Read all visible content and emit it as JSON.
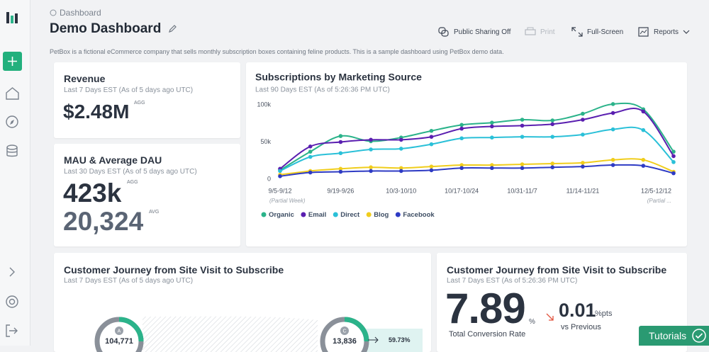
{
  "header": {
    "breadcrumb": "Dashboard",
    "title": "Demo Dashboard",
    "description": "PetBox is a fictional eCommerce company that sells monthly subscription boxes containing feline products. This is a sample dashboard using PetBox demo data.",
    "actions": [
      "Public Sharing Off",
      "Print",
      "Full-Screen",
      "Reports"
    ]
  },
  "cards": {
    "revenue": {
      "title": "Revenue",
      "subtitle": "Last 7 Days EST (As of 5 days ago UTC)",
      "value": "$2.48M",
      "value_tag": "AGG"
    },
    "mau": {
      "title": "MAU & Average DAU",
      "subtitle": "Last 30 Days EST (As of 5 days ago UTC)",
      "primary": "423k",
      "primary_tag": "AGG",
      "secondary": "20,324",
      "secondary_tag": "AVG"
    },
    "journey_funnel": {
      "title": "Customer Journey from Site Visit to Subscribe",
      "subtitle": "Last 7 Days EST (As of 5 days ago UTC)",
      "steps": [
        {
          "badge": "A",
          "value": "104,771"
        },
        {
          "badge": "C",
          "value": "13,836"
        }
      ],
      "rate": "59.73%"
    },
    "journey_rate": {
      "title": "Customer Journey from Site Visit to Subscribe",
      "subtitle": "Last 7 Days EST (As of 5:26:36 PM UTC)",
      "value": "7.89",
      "unit": "%",
      "label": "Total Conversion Rate",
      "change": "0.01",
      "change_unit": "%pts",
      "change_label": "vs Previous"
    }
  },
  "chart_data": {
    "type": "line",
    "title": "Subscriptions by Marketing Source",
    "subtitle": "Last 90 Days EST (As of 5:26:36 PM UTC)",
    "categories": [
      "9/5-9/12",
      null,
      "9/19-9/26",
      null,
      "10/3-10/10",
      null,
      "10/17-10/24",
      null,
      "10/31-11/7",
      null,
      "11/14-11/21",
      null,
      null,
      "12/5-12/12"
    ],
    "category_notes": [
      "(Partial Week)",
      null,
      null,
      null,
      null,
      null,
      null,
      null,
      null,
      null,
      null,
      null,
      null,
      "(Partial ..."
    ],
    "series": [
      {
        "name": "Organic",
        "color": "#2bb38a",
        "values": [
          12000,
          37000,
          58000,
          51000,
          56000,
          65000,
          73000,
          76000,
          80000,
          79000,
          88000,
          101000,
          94000,
          37000
        ]
      },
      {
        "name": "Email",
        "color": "#5a1fb0",
        "values": [
          14000,
          44000,
          50000,
          53000,
          53000,
          57000,
          68000,
          71000,
          72000,
          74000,
          80000,
          89000,
          91000,
          31000
        ]
      },
      {
        "name": "Direct",
        "color": "#2ac0d8",
        "values": [
          11000,
          30000,
          35000,
          40000,
          41000,
          47000,
          55000,
          56000,
          57000,
          57000,
          60000,
          67000,
          66000,
          23000
        ]
      },
      {
        "name": "Blog",
        "color": "#f0cd1c",
        "values": [
          6000,
          11000,
          14000,
          16000,
          15000,
          17000,
          19000,
          19000,
          20000,
          21000,
          22000,
          26000,
          26000,
          10000
        ]
      },
      {
        "name": "Facebook",
        "color": "#2e3bc4",
        "values": [
          4000,
          9000,
          10000,
          11000,
          11000,
          12000,
          15000,
          15000,
          15000,
          16000,
          17000,
          19000,
          18000,
          8000
        ]
      }
    ],
    "ylim": [
      0,
      100000
    ],
    "yticks": [
      0,
      {
        "value": 50000,
        "label": "50k"
      },
      {
        "value": 100000,
        "label": "100k"
      }
    ],
    "grid": false,
    "legend": "bottom"
  },
  "tutorials": "Tutorials"
}
